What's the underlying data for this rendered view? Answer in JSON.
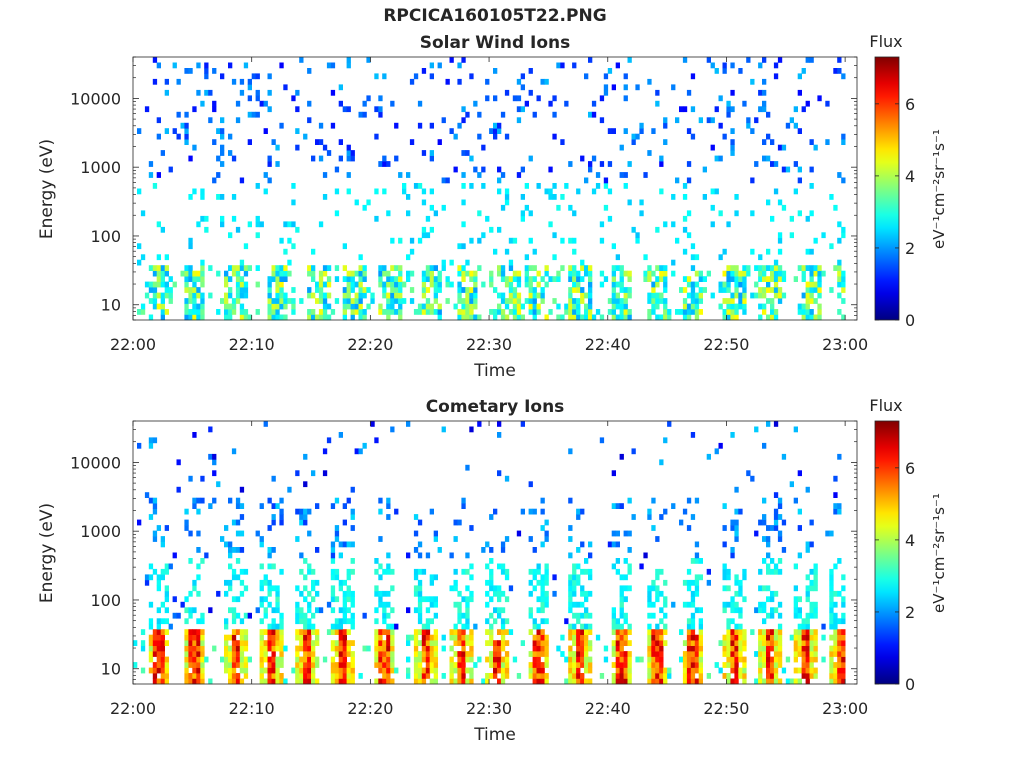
{
  "figure": {
    "filename": "RPCICA160105T22.PNG"
  },
  "colormap": "jet",
  "chart_data": [
    {
      "type": "heatmap",
      "title": "Solar Wind Ions",
      "xlabel": "Time",
      "ylabel": "Energy (eV)",
      "yscale": "log",
      "xlim": [
        "22:00",
        "23:00"
      ],
      "ylim": [
        6,
        40000
      ],
      "xticks": [
        "22:00",
        "22:10",
        "22:20",
        "22:30",
        "22:40",
        "22:50",
        "23:00"
      ],
      "yticks": [
        "10",
        "100",
        "1000",
        "10000"
      ],
      "colorbar": {
        "label": "Flux",
        "unit_label": "eV⁻¹cm⁻²sr⁻¹s⁻¹",
        "range": [
          0,
          7.3
        ],
        "ticks": [
          "0",
          "2",
          "4",
          "6"
        ]
      },
      "bursts_minutes": [
        2,
        5,
        8.5,
        12,
        15.5,
        18.5,
        21.5,
        25,
        28,
        31.5,
        34,
        37.5,
        41,
        44,
        47,
        50.5,
        53.5,
        57,
        60
      ],
      "band_flux": {
        "low_energy_range_eV": [
          6,
          35
        ],
        "low_energy_flux_range": [
          2.2,
          4.5
        ],
        "sparse_flux_range": [
          1.0,
          2.8
        ]
      }
    },
    {
      "type": "heatmap",
      "title": "Cometary Ions",
      "xlabel": "Time",
      "ylabel": "Energy (eV)",
      "yscale": "log",
      "xlim": [
        "22:00",
        "23:00"
      ],
      "ylim": [
        6,
        40000
      ],
      "xticks": [
        "22:00",
        "22:10",
        "22:20",
        "22:30",
        "22:40",
        "22:50",
        "23:00"
      ],
      "yticks": [
        "10",
        "100",
        "1000",
        "10000"
      ],
      "colorbar": {
        "label": "Flux",
        "unit_label": "eV⁻¹cm⁻²sr⁻¹s⁻¹",
        "range": [
          0,
          7.3
        ],
        "ticks": [
          "0",
          "2",
          "4",
          "6"
        ]
      },
      "bursts_minutes": [
        2,
        5,
        8.5,
        11.5,
        14.5,
        17.5,
        21,
        24.5,
        27.5,
        30.5,
        34,
        37.5,
        41,
        44,
        47,
        50.5,
        53.5,
        56.5,
        59.5
      ],
      "band_flux": {
        "low_energy_range_eV": [
          6,
          35
        ],
        "peak_flux_range": [
          5.5,
          6.8
        ],
        "mid_energy_flux_range": [
          2.0,
          3.2
        ],
        "sparse_flux_range": [
          1.0,
          2.5
        ]
      }
    }
  ]
}
